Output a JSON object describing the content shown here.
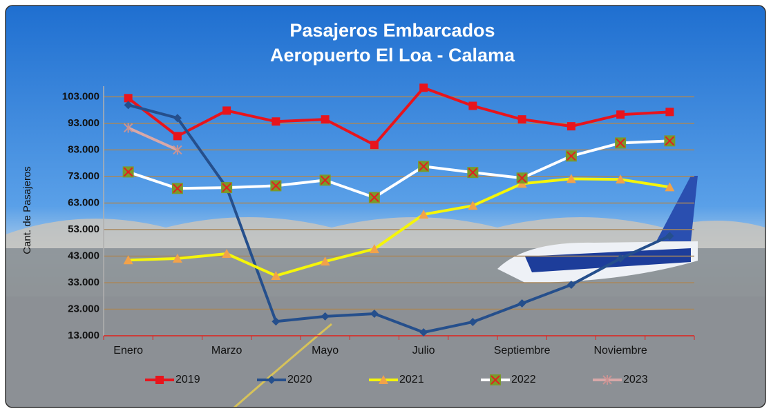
{
  "chart_data": {
    "type": "line",
    "title": "Pasajeros  Embarcados",
    "subtitle": "Aeropuerto  El Loa - Calama",
    "y_label": "Cant. de Pasajeros",
    "categories": [
      "Enero",
      null,
      "Marzo",
      null,
      "Mayo",
      null,
      "Julio",
      null,
      "Septiembre",
      null,
      "Noviembre",
      null
    ],
    "series": [
      {
        "name": "2019",
        "color": "#e8141c",
        "marker": "square",
        "marker_color": "#e8141c",
        "values": [
          102500,
          88200,
          97800,
          93700,
          94500,
          84900,
          106400,
          99600,
          94500,
          91900,
          96300,
          97300
        ]
      },
      {
        "name": "2020",
        "color": "#254f8c",
        "marker": "diamond",
        "marker_color": "#254f8c",
        "values": [
          99900,
          95000,
          68800,
          18400,
          20300,
          21300,
          14300,
          18200,
          25200,
          32200,
          42100,
          50600
        ]
      },
      {
        "name": "2021",
        "color": "#f5f50a",
        "marker": "triangle",
        "marker_color": "#f2a24a",
        "values": [
          41500,
          42100,
          43900,
          35600,
          41000,
          45700,
          58700,
          62000,
          70300,
          72100,
          71900,
          69000
        ]
      },
      {
        "name": "2022",
        "color": "#ffffff",
        "marker": "xsquare",
        "marker_color": "#7a9a2a",
        "values": [
          74700,
          68500,
          68800,
          69500,
          71600,
          65100,
          76800,
          74500,
          72400,
          80700,
          85600,
          86400
        ]
      },
      {
        "name": "2023",
        "color": "#d8a8a8",
        "marker": "star",
        "marker_color": "#c99494",
        "values": [
          91300,
          83000,
          null,
          null,
          null,
          null,
          null,
          null,
          null,
          null,
          null,
          null
        ]
      }
    ],
    "ylim": [
      13000,
      107000
    ],
    "yticks": [
      {
        "value": 13000,
        "label": "13.000"
      },
      {
        "value": 23000,
        "label": "23.000"
      },
      {
        "value": 33000,
        "label": "33.000"
      },
      {
        "value": 43000,
        "label": "43.000"
      },
      {
        "value": 53000,
        "label": "53.000"
      },
      {
        "value": 63000,
        "label": "63.000"
      },
      {
        "value": 73000,
        "label": "73.000"
      },
      {
        "value": 83000,
        "label": "83.000"
      },
      {
        "value": 93000,
        "label": "93.000"
      },
      {
        "value": 103000,
        "label": "103.000"
      }
    ],
    "grid": true
  }
}
